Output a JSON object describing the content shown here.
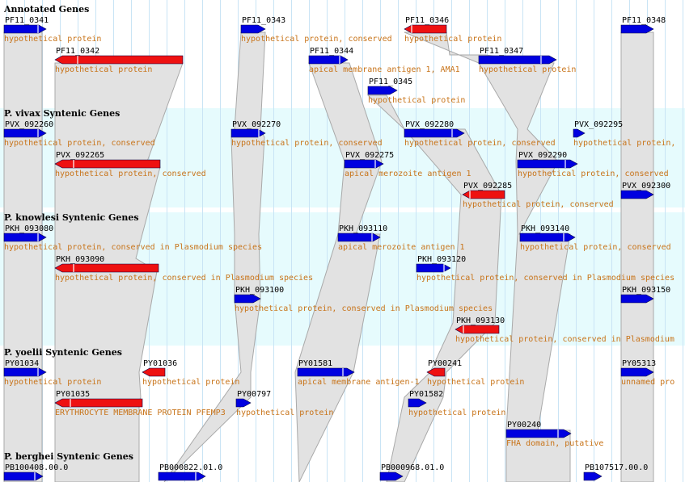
{
  "sections": [
    {
      "key": "annotated",
      "title": "Annotated Genes"
    },
    {
      "key": "vivax",
      "title": "P. vivax Syntenic Genes"
    },
    {
      "key": "knowlesi",
      "title": "P. knowlesi Syntenic Genes"
    },
    {
      "key": "yoelii",
      "title": "P. yoelii Syntenic Genes"
    },
    {
      "key": "berghei",
      "title": "P. berghei Syntenic Genes"
    }
  ],
  "colors": {
    "forward": "#0000e0",
    "reverse": "#ee1111",
    "band": "#e6fbfd",
    "synteny": "#e2e2e2",
    "synteny_edge": "#a9a9a9",
    "gridline": "#c9e4f5",
    "desc": "#c8741a"
  },
  "genes": [
    {
      "id": "PF11_0341",
      "desc": "hypothetical protein"
    },
    {
      "id": "PF11_0342",
      "desc": "hypothetical protein"
    },
    {
      "id": "PF11_0343",
      "desc": "hypothetical protein, conserved"
    },
    {
      "id": "PF11_0344",
      "desc": "apical membrane antigen 1,  AMA1"
    },
    {
      "id": "PF11_0345",
      "desc": "hypothetical protein"
    },
    {
      "id": "PF11_0346",
      "desc": "hypothetical protein"
    },
    {
      "id": "PF11_0347",
      "desc": "hypothetical protein"
    },
    {
      "id": "PF11_0348",
      "desc": ""
    },
    {
      "id": "PVX_092260",
      "desc": "hypothetical protein, conserved"
    },
    {
      "id": "PVX_092265",
      "desc": "hypothetical protein, conserved"
    },
    {
      "id": "PVX_092270",
      "desc": "hypothetical protein, conserved"
    },
    {
      "id": "PVX_092275",
      "desc": "apical merozoite antigen 1"
    },
    {
      "id": "PVX_092280",
      "desc": "hypothetical protein, conserved"
    },
    {
      "id": "PVX_092285",
      "desc": "hypothetical protein, conserved"
    },
    {
      "id": "PVX_092290",
      "desc": "hypothetical protein, conserved"
    },
    {
      "id": "PVX_092295",
      "desc": "hypothetical protein,"
    },
    {
      "id": "PVX_092300",
      "desc": ""
    },
    {
      "id": "PKH_093080",
      "desc": "hypothetical protein, conserved in Plasmodium species"
    },
    {
      "id": "PKH_093090",
      "desc": "hypothetical protein, conserved in Plasmodium species"
    },
    {
      "id": "PKH_093100",
      "desc": "hypothetical protein, conserved in Plasmodium species"
    },
    {
      "id": "PKH_093110",
      "desc": "apical merozoite antigen 1"
    },
    {
      "id": "PKH_093120",
      "desc": "hypothetical protein, conserved in Plasmodium species"
    },
    {
      "id": "PKH_093130",
      "desc": "hypothetical protein, conserved in Plasmodium"
    },
    {
      "id": "PKH_093140",
      "desc": "hypothetical protein, conserved"
    },
    {
      "id": "PKH_093150",
      "desc": ""
    },
    {
      "id": "PY01034",
      "desc": "hypothetical protein"
    },
    {
      "id": "PY01035",
      "desc": "ERYTHROCYTE MEMBRANE PROTEIN PFEMP3"
    },
    {
      "id": "PY01036",
      "desc": "hypothetical protein"
    },
    {
      "id": "PY00797",
      "desc": "hypothetical protein"
    },
    {
      "id": "PY01581",
      "desc": "apical membrane antigen-1"
    },
    {
      "id": "PY00241",
      "desc": "hypothetical protein"
    },
    {
      "id": "PY01582",
      "desc": "hypothetical protein"
    },
    {
      "id": "PY00240",
      "desc": "FHA domain, putative"
    },
    {
      "id": "PY05313",
      "desc": "unnamed pro"
    },
    {
      "id": "PB100408.00.0",
      "desc": ""
    },
    {
      "id": "PB000822.01.0",
      "desc": ""
    },
    {
      "id": "PB000968.01.0",
      "desc": ""
    },
    {
      "id": "PB107517.00.0",
      "desc": ""
    }
  ]
}
